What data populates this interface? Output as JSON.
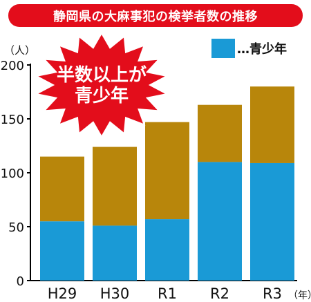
{
  "chart_data": {
    "type": "bar",
    "stacked": true,
    "title": "静岡県の大麻事犯の検挙者数の推移",
    "y_unit": "（人）",
    "x_unit": "（年）",
    "categories": [
      "H29",
      "H30",
      "R1",
      "R2",
      "R3"
    ],
    "ylim": [
      0,
      200
    ],
    "yticks": [
      0,
      50,
      100,
      150,
      200
    ],
    "series": [
      {
        "name": "…青少年",
        "color": "#1a9ad6",
        "values": [
          55,
          51,
          57,
          110,
          109
        ]
      },
      {
        "name": "",
        "color": "#b8860b",
        "values": [
          60,
          73,
          90,
          53,
          71
        ]
      }
    ],
    "legend_position": "top-right",
    "callout": [
      "半数以上が",
      "青少年"
    ],
    "callout_color": "#e30d1b",
    "grid": false
  }
}
